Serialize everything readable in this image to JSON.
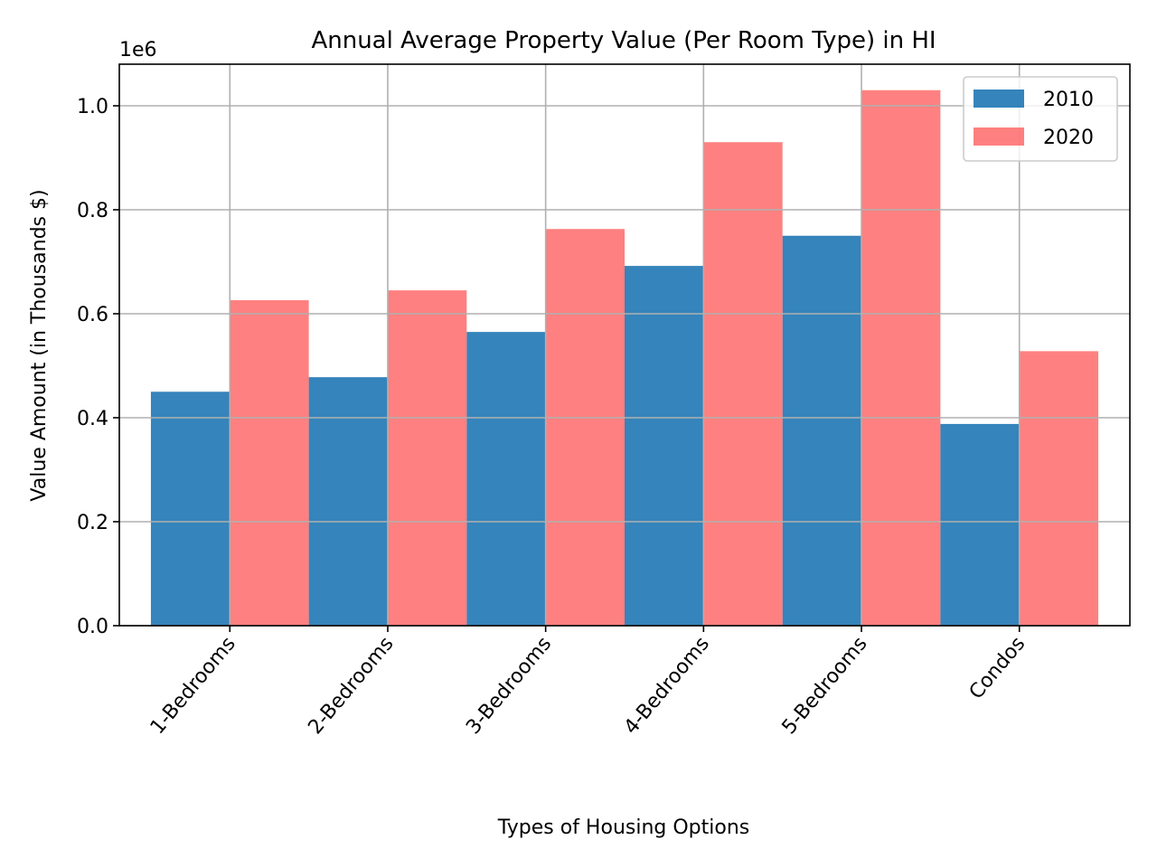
{
  "chart_data": {
    "type": "bar",
    "title": "Annual Average Property Value (Per Room Type) in HI",
    "xlabel": "Types of Housing Options",
    "ylabel": "Value Amount (in Thousands $)",
    "y_offset_label": "1e6",
    "categories": [
      "1-Bedrooms",
      "2-Bedrooms",
      "3-Bedrooms",
      "4-Bedrooms",
      "5-Bedrooms",
      "Condos"
    ],
    "series": [
      {
        "name": "2010",
        "values": [
          450000,
          478000,
          565000,
          692000,
          750000,
          388000
        ],
        "color": "#1f77b4",
        "opacity": 0.9
      },
      {
        "name": "2020",
        "values": [
          626000,
          645000,
          763000,
          930000,
          1030000,
          528000
        ],
        "color": "#ff5555",
        "opacity": 0.75
      }
    ],
    "ylim": [
      0,
      1080000
    ],
    "yticks": [
      0,
      200000,
      400000,
      600000,
      800000,
      1000000
    ],
    "ytick_labels": [
      "0.0",
      "0.2",
      "0.4",
      "0.6",
      "0.8",
      "1.0"
    ],
    "grid": true,
    "legend_position": "top-right"
  }
}
